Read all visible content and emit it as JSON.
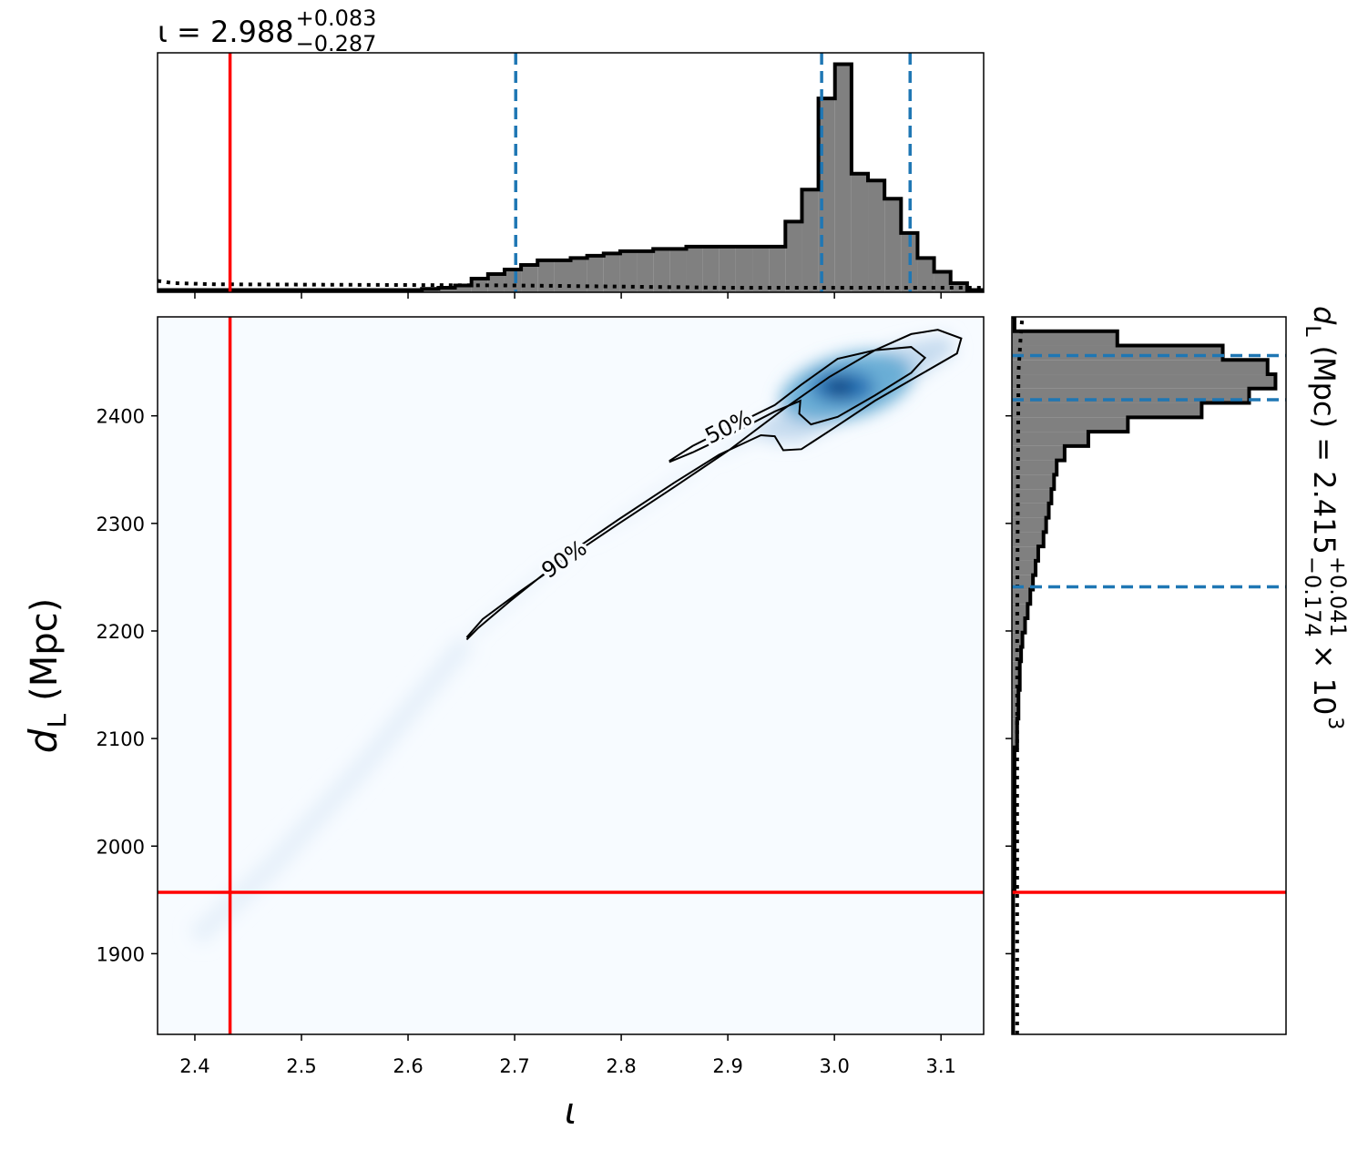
{
  "chart_data": [
    {
      "type": "histogram",
      "orientation": "vertical",
      "title": {
        "text": "ι = 2.988",
        "upper": "+0.083",
        "lower": "−0.287"
      },
      "bins": [
        2.365,
        2.3805,
        2.396,
        2.4115,
        2.427,
        2.4425,
        2.458,
        2.4735,
        2.489,
        2.5045,
        2.52,
        2.5355,
        2.551,
        2.5665,
        2.582,
        2.5975,
        2.613,
        2.6285,
        2.644,
        2.6595,
        2.675,
        2.6905,
        2.706,
        2.7215,
        2.737,
        2.7525,
        2.768,
        2.7835,
        2.799,
        2.8145,
        2.83,
        2.8455,
        2.861,
        2.8765,
        2.892,
        2.9075,
        2.923,
        2.9385,
        2.954,
        2.9695,
        2.985,
        3.0005,
        3.016,
        3.0315,
        3.047,
        3.0625,
        3.078,
        3.0935,
        3.109,
        3.1245,
        3.14
      ],
      "values": [
        0.01,
        0.01,
        0.01,
        0.01,
        0.01,
        0.01,
        0.01,
        0.01,
        0.01,
        0.01,
        0.01,
        0.01,
        0.01,
        0.01,
        0.01,
        0.01,
        0.015,
        0.02,
        0.03,
        0.06,
        0.08,
        0.1,
        0.12,
        0.14,
        0.14,
        0.15,
        0.16,
        0.17,
        0.18,
        0.18,
        0.19,
        0.19,
        0.2,
        0.2,
        0.2,
        0.2,
        0.2,
        0.2,
        0.31,
        0.45,
        0.85,
        1.0,
        0.52,
        0.49,
        0.41,
        0.26,
        0.15,
        0.09,
        0.04,
        0.01
      ],
      "color": "#808080",
      "edgecolor": "#000000",
      "xlim": [
        2.365,
        3.14
      ],
      "ylim": [
        0,
        1.05
      ],
      "prior": {
        "x": [
          2.365,
          2.38,
          2.42,
          2.7,
          2.9,
          3.14
        ],
        "values": [
          0.05,
          0.04,
          0.035,
          0.03,
          0.02,
          0.02
        ],
        "color": "#000000"
      },
      "truth": 2.433,
      "truth_color": "#ff0000",
      "quantiles": [
        2.701,
        2.988,
        3.071
      ],
      "quantile_color": "#1f77b4"
    },
    {
      "type": "contour",
      "x_label": "ι",
      "y_label": {
        "symbol": "d",
        "subscript": "L",
        "text": "(Mpc)"
      },
      "xlim": [
        2.365,
        3.14
      ],
      "ylim": [
        1825,
        2492
      ],
      "xticks": [
        2.4,
        2.5,
        2.6,
        2.7,
        2.8,
        2.9,
        {
          "value": 3,
          "label": "3.0"
        },
        3.1
      ],
      "yticks": [
        1900,
        2000,
        2100,
        2200,
        2300,
        2400
      ],
      "contours": [
        {
          "label": "90%",
          "x": [
            2.655,
            2.67,
            2.704,
            2.747,
            2.798,
            2.85,
            2.901,
            2.952,
            2.995,
            3.038,
            3.072,
            3.097,
            3.119,
            3.115,
            3.08,
            3.038,
            3.0,
            2.969,
            2.952,
            2.944,
            2.931,
            2.892,
            2.85,
            2.798,
            2.764,
            2.73,
            2.696,
            2.666,
            2.655
          ],
          "y": [
            2194,
            2211,
            2236,
            2266,
            2300,
            2334,
            2368,
            2406,
            2436,
            2461,
            2476,
            2480,
            2472,
            2458,
            2438,
            2414,
            2389,
            2369,
            2368,
            2381,
            2382,
            2364,
            2338,
            2304,
            2281,
            2255,
            2228,
            2203,
            2192
          ]
        },
        {
          "label": "50%",
          "x": [
            2.845,
            2.867,
            2.901,
            2.944,
            2.969,
            3.003,
            3.038,
            3.072,
            3.085,
            3.072,
            3.038,
            3.003,
            2.978,
            2.967,
            2.968,
            2.944,
            2.901,
            2.867,
            2.845
          ],
          "y": [
            2358,
            2372,
            2389,
            2410,
            2429,
            2453,
            2461,
            2464,
            2454,
            2440,
            2419,
            2399,
            2392,
            2402,
            2414,
            2404,
            2382,
            2366,
            2357
          ]
        }
      ],
      "contour_color": "#000000",
      "truth": {
        "x": 2.433,
        "y": 1957
      },
      "truth_color": "#ff0000"
    },
    {
      "type": "histogram",
      "orientation": "horizontal",
      "title": {
        "symbol": "d",
        "subscript": "L",
        "text": "(Mpc) = 2.415",
        "upper": "+0.041",
        "lower": "−0.174",
        "multiplier": "× 10",
        "exponent": "3"
      },
      "bins": [
        1825,
        1838.34,
        1851.68,
        1865.02,
        1878.36,
        1891.7,
        1905.04,
        1918.38,
        1931.72,
        1945.06,
        1958.4,
        1971.74,
        1985.08,
        1998.42,
        2011.76,
        2025.1,
        2038.44,
        2051.78,
        2065.12,
        2078.46,
        2091.8,
        2105.14,
        2118.48,
        2131.82,
        2145.16,
        2158.5,
        2171.84,
        2185.18,
        2198.52,
        2211.86,
        2225.2,
        2238.54,
        2251.88,
        2265.22,
        2278.56,
        2291.9,
        2305.24,
        2318.58,
        2331.92,
        2345.26,
        2358.6,
        2371.94,
        2385.28,
        2398.62,
        2411.96,
        2425.3,
        2438.64,
        2451.98,
        2465.32,
        2478.66,
        2492
      ],
      "values": [
        0.005,
        0.005,
        0.005,
        0.005,
        0.005,
        0.005,
        0.005,
        0.005,
        0.005,
        0.005,
        0.01,
        0.01,
        0.01,
        0.01,
        0.01,
        0.01,
        0.01,
        0.01,
        0.01,
        0.01,
        0.02,
        0.02,
        0.025,
        0.025,
        0.03,
        0.03,
        0.035,
        0.04,
        0.05,
        0.06,
        0.07,
        0.08,
        0.09,
        0.1,
        0.12,
        0.13,
        0.14,
        0.15,
        0.16,
        0.17,
        0.2,
        0.29,
        0.44,
        0.72,
        0.9,
        1.0,
        0.97,
        0.8,
        0.4,
        0.01
      ],
      "color": "#808080",
      "edgecolor": "#000000",
      "xlim": [
        0,
        1.04
      ],
      "ylim": [
        1825,
        2492
      ],
      "prior": {
        "y": [
          1825,
          2200,
          2440,
          2480,
          2492
        ],
        "values": [
          0.02,
          0.02,
          0.025,
          0.035,
          0.04
        ],
        "color": "#000000"
      },
      "truth": 1957,
      "truth_color": "#ff0000",
      "quantiles": [
        2241,
        2415,
        2456
      ],
      "quantile_color": "#1f77b4"
    }
  ]
}
